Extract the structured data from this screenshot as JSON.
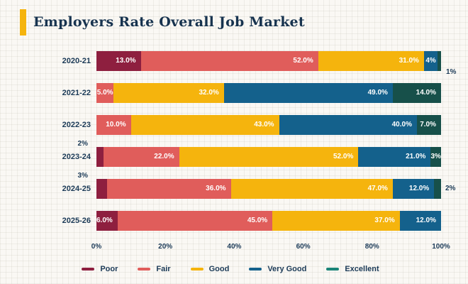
{
  "title": "Employers Rate Overall Job Market",
  "colors": {
    "accent_yellow": "#f5b40d",
    "navy_text": "#1b3a57",
    "title_navy": "#17334f",
    "background": "#faf8f4"
  },
  "chart_data": {
    "type": "bar",
    "orientation": "horizontal",
    "stacked": true,
    "title": "Employers Rate Overall Job Market",
    "categories": [
      "2020-21",
      "2021-22",
      "2022-23",
      "2023-24",
      "2024-25",
      "2025-26"
    ],
    "series": [
      {
        "name": "Poor",
        "color": "#8e1f3f",
        "values": [
          13,
          0,
          0,
          2,
          3,
          6
        ]
      },
      {
        "name": "Fair",
        "color": "#e05d5b",
        "values": [
          52,
          5,
          10,
          22,
          36,
          45
        ]
      },
      {
        "name": "Good",
        "color": "#f5b40d",
        "values": [
          31,
          32,
          43,
          52,
          47,
          37
        ]
      },
      {
        "name": "Very Good",
        "color": "#14618c",
        "values": [
          4,
          49,
          40,
          21,
          12,
          12
        ]
      },
      {
        "name": "Excellent",
        "color": "#17504a",
        "values": [
          1,
          14,
          7,
          3,
          2,
          0
        ]
      }
    ],
    "xlim": [
      0,
      100
    ],
    "x_ticks": [
      "0%",
      "20%",
      "40%",
      "60%",
      "80%",
      "100%"
    ],
    "grid": false,
    "legend_position": "bottom",
    "rows": [
      {
        "category": "2020-21",
        "segments": [
          {
            "series": 0,
            "value": 13,
            "label": "13.0%",
            "placement": "inside"
          },
          {
            "series": 1,
            "value": 52,
            "label": "52.0%",
            "placement": "inside"
          },
          {
            "series": 2,
            "value": 31,
            "label": "31.0%",
            "placement": "inside"
          },
          {
            "series": 3,
            "value": 4,
            "label": "4%",
            "placement": "inside-center"
          },
          {
            "series": 4,
            "value": 1,
            "label": "1%",
            "placement": "outside-right-low"
          }
        ]
      },
      {
        "category": "2021-22",
        "segments": [
          {
            "series": 1,
            "value": 5,
            "label": "5.0%",
            "placement": "inside-center"
          },
          {
            "series": 2,
            "value": 32,
            "label": "32.0%",
            "placement": "inside"
          },
          {
            "series": 3,
            "value": 49,
            "label": "49.0%",
            "placement": "inside"
          },
          {
            "series": 4,
            "value": 14,
            "label": "14.0%",
            "placement": "inside"
          }
        ]
      },
      {
        "category": "2022-23",
        "segments": [
          {
            "series": 1,
            "value": 10,
            "label": "10.0%",
            "placement": "inside"
          },
          {
            "series": 2,
            "value": 43,
            "label": "43.0%",
            "placement": "inside"
          },
          {
            "series": 3,
            "value": 40,
            "label": "40.0%",
            "placement": "inside"
          },
          {
            "series": 4,
            "value": 7,
            "label": "7.0%",
            "placement": "inside"
          }
        ]
      },
      {
        "category": "2023-24",
        "segments": [
          {
            "series": 0,
            "value": 2,
            "label": "2%",
            "placement": "outside-above-left"
          },
          {
            "series": 1,
            "value": 22,
            "label": "22.0%",
            "placement": "inside"
          },
          {
            "series": 2,
            "value": 52,
            "label": "52.0%",
            "placement": "inside"
          },
          {
            "series": 3,
            "value": 21,
            "label": "21.0%",
            "placement": "inside"
          },
          {
            "series": 4,
            "value": 3,
            "label": "3%",
            "placement": "inside-center"
          }
        ]
      },
      {
        "category": "2024-25",
        "segments": [
          {
            "series": 0,
            "value": 3,
            "label": "3%",
            "placement": "outside-above-left"
          },
          {
            "series": 1,
            "value": 36,
            "label": "36.0%",
            "placement": "inside"
          },
          {
            "series": 2,
            "value": 47,
            "label": "47.0%",
            "placement": "inside"
          },
          {
            "series": 3,
            "value": 12,
            "label": "12.0%",
            "placement": "inside"
          },
          {
            "series": 4,
            "value": 2,
            "label": "2%",
            "placement": "outside-right"
          }
        ]
      },
      {
        "category": "2025-26",
        "segments": [
          {
            "series": 0,
            "value": 6,
            "label": "6.0%",
            "placement": "inside"
          },
          {
            "series": 1,
            "value": 45,
            "label": "45.0%",
            "placement": "inside"
          },
          {
            "series": 2,
            "value": 37,
            "label": "37.0%",
            "placement": "inside"
          },
          {
            "series": 3,
            "value": 12,
            "label": "12.0%",
            "placement": "inside"
          }
        ]
      }
    ]
  },
  "legend": {
    "entries": [
      {
        "label": "Poor",
        "color": "#8e1f3f"
      },
      {
        "label": "Fair",
        "color": "#e05d5b"
      },
      {
        "label": "Good",
        "color": "#f5b40d"
      },
      {
        "label": "Very Good",
        "color": "#14618c"
      },
      {
        "label": "Excellent",
        "color": "#1b8578"
      }
    ]
  }
}
